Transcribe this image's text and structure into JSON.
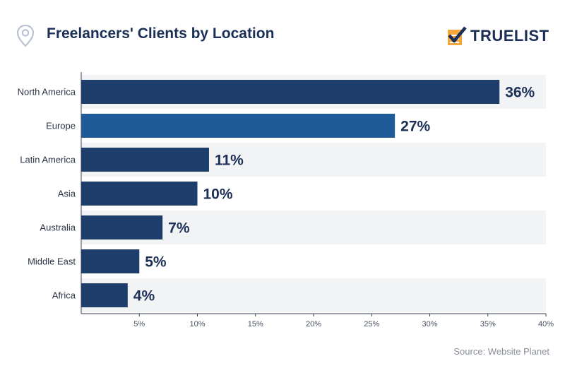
{
  "header": {
    "title": "Freelancers' Clients by Location",
    "brand": "TRUELIST"
  },
  "source": "Source: Website Planet",
  "colors": {
    "bar": "#1d3d6b",
    "bar_highlight": "#1f5a99",
    "band": "#f2f3f5",
    "title": "#1b2f57"
  },
  "chart_data": {
    "type": "bar",
    "orientation": "horizontal",
    "title": "Freelancers' Clients by Location",
    "categories": [
      "North America",
      "Europe",
      "Latin America",
      "Asia",
      "Australia",
      "Middle East",
      "Africa"
    ],
    "values": [
      36,
      27,
      11,
      10,
      7,
      5,
      4
    ],
    "value_labels": [
      "36%",
      "27%",
      "11%",
      "10%",
      "7%",
      "5%",
      "4%"
    ],
    "xlim": [
      0,
      40
    ],
    "x_ticks": [
      5,
      10,
      15,
      20,
      25,
      30,
      35,
      40
    ],
    "x_tick_labels": [
      "5%",
      "10%",
      "15%",
      "20%",
      "25%",
      "30%",
      "35%",
      "40%"
    ],
    "xlabel": "",
    "ylabel": "",
    "grid": false
  }
}
